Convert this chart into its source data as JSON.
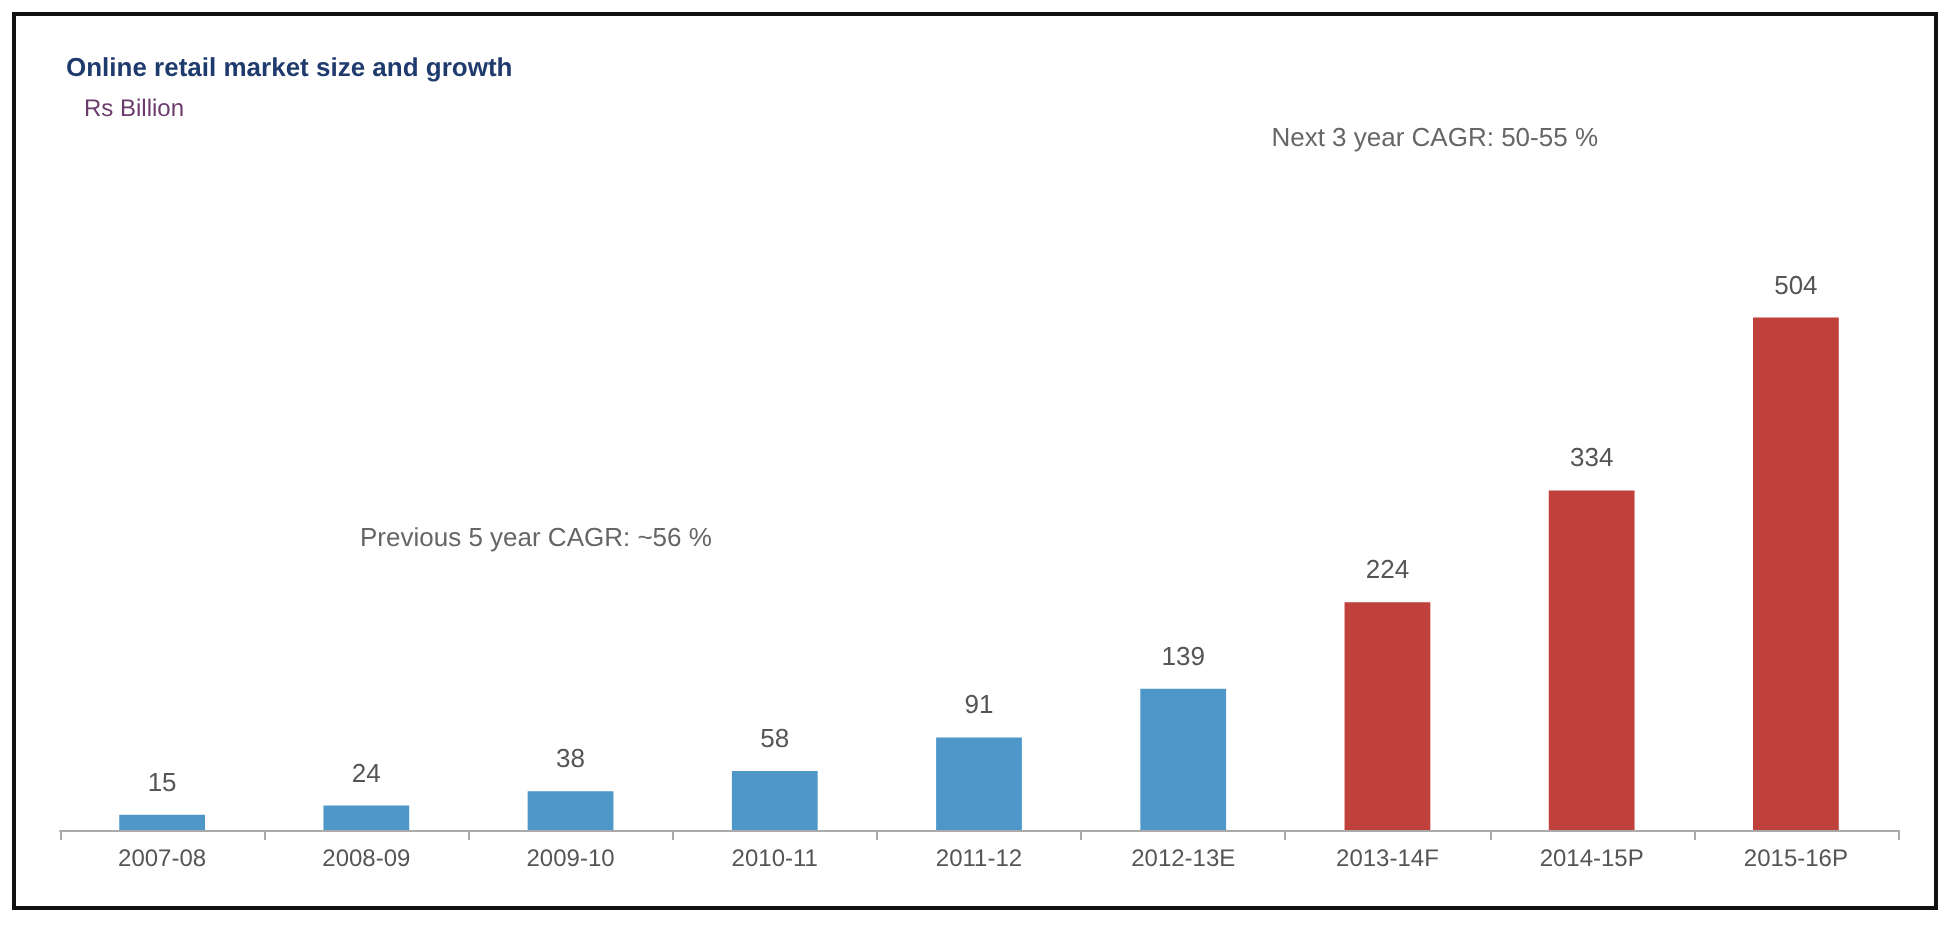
{
  "chart_data": {
    "type": "bar",
    "title": "Online retail market size and growth",
    "categories": [
      "2007-08",
      "2008-09",
      "2009-10",
      "2010-11",
      "2011-12",
      "2012-13E",
      "2013-14F",
      "2014-15P",
      "2015-16P"
    ],
    "values": [
      15,
      24,
      38,
      58,
      91,
      139,
      224,
      334,
      504
    ],
    "colors": [
      "#4f97c9",
      "#4f97c9",
      "#4f97c9",
      "#4f97c9",
      "#4f97c9",
      "#4f97c9",
      "#c0413b",
      "#c0413b",
      "#c0413b"
    ],
    "data_labels": true,
    "annotations": [
      "Rs Billion",
      "Next 3 year CAGR: 50-55 %",
      "Previous 5 year CAGR: ~56 %"
    ]
  }
}
